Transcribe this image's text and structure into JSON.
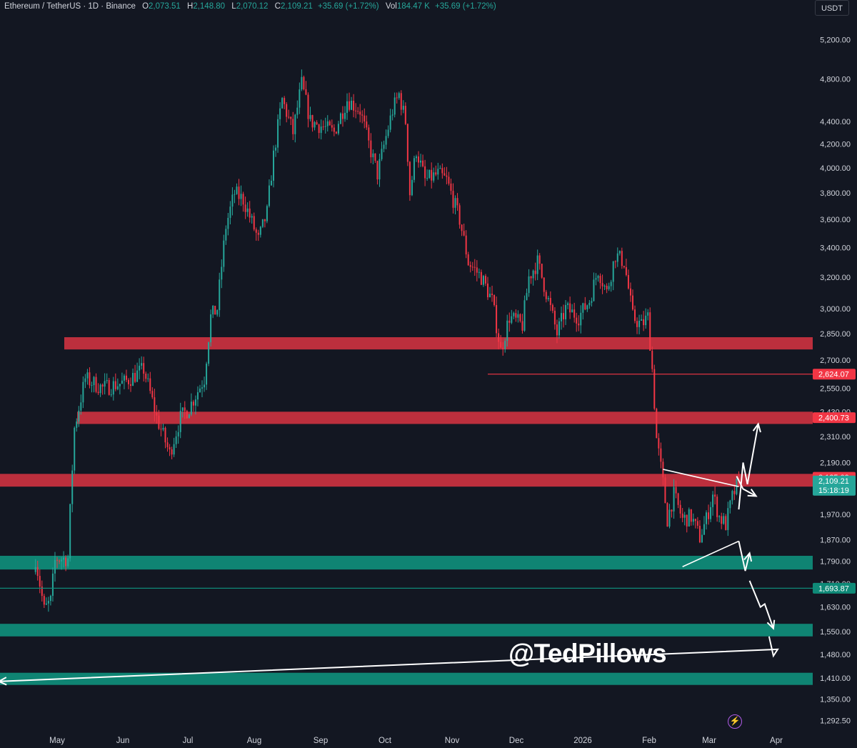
{
  "legend": {
    "symbol": "Ethereum / TetherUS · 1D · Binance",
    "open_label": "O",
    "open": "2,073.51",
    "high_label": "H",
    "high": "2,148.80",
    "low_label": "L",
    "low": "2,070.12",
    "close_label": "C",
    "close": "2,109.21",
    "change": "+35.69 (+1.72%)",
    "vol_label": "Vol",
    "vol": "184.47 K",
    "vol_change": "+35.69 (+1.72%)"
  },
  "currency": "USDT",
  "watermark": "@TedPillows",
  "alert_icon": "lightning-icon",
  "colors": {
    "background": "#131722",
    "up": "#26a69a",
    "down": "#f23645",
    "resistance_zone": "#c9323f",
    "support_zone": "#0f8a78",
    "annotation": "#ffffff"
  },
  "chart_data": {
    "type": "candlestick",
    "y_axis_scale": "log",
    "y_tick_labels": [
      "5,200.00",
      "4,800.00",
      "4,400.00",
      "4,200.00",
      "4,000.00",
      "3,800.00",
      "3,600.00",
      "3,400.00",
      "3,200.00",
      "3,000.00",
      "2,850.00",
      "2,700.00",
      "2,550.00",
      "2,430.00",
      "2,310.00",
      "2,190.00",
      "1,970.00",
      "1,870.00",
      "1,790.00",
      "1,710.00",
      "1,630.00",
      "1,550.00",
      "1,480.00",
      "1,410.00",
      "1,350.00",
      "1,292.50"
    ],
    "y_ticks": [
      5200,
      4800,
      4400,
      4200,
      4000,
      3800,
      3600,
      3400,
      3200,
      3000,
      2850,
      2700,
      2550,
      2430,
      2310,
      2190,
      1970,
      1870,
      1790,
      1710,
      1630,
      1550,
      1480,
      1410,
      1350,
      1292.5
    ],
    "x_tick_labels": [
      "May",
      "Jun",
      "Jul",
      "Aug",
      "Sep",
      "Oct",
      "Nov",
      "Dec",
      "2026",
      "Feb",
      "Mar",
      "Apr"
    ],
    "price_labels": [
      {
        "text": "2,624.07",
        "value": 2624.07,
        "color": "#f23645"
      },
      {
        "text": "2,400.73",
        "value": 2400.73,
        "color": "#f23645"
      },
      {
        "text": "2,125.09",
        "value": 2125.09,
        "color": "#f23645"
      },
      {
        "text": "2,109.21",
        "value": 2109.21,
        "color": "#26a69a",
        "countdown": "15:18:19"
      },
      {
        "text": "1,693.87",
        "value": 1693.87,
        "color": "#0f8a78"
      }
    ],
    "resistance_zones": [
      [
        2760,
        2830
      ],
      [
        2370,
        2430
      ],
      [
        2085,
        2140
      ]
    ],
    "support_zones": [
      [
        1760,
        1810
      ],
      [
        1535,
        1575
      ],
      [
        1390,
        1425
      ]
    ],
    "horizontal_lines": [
      2624.07,
      1693.87
    ],
    "path": [
      [
        "Apr 21",
        1800
      ],
      [
        "Apr 25",
        1620
      ],
      [
        "Apr 28",
        1650
      ],
      [
        "Apr 30",
        1790
      ],
      [
        "May 1",
        1800
      ],
      [
        "May 6",
        1800
      ],
      [
        "May 9",
        2350
      ],
      [
        "May 14",
        2600
      ],
      [
        "May 22",
        2550
      ],
      [
        "Jun 1",
        2580
      ],
      [
        "Jun 10",
        2650
      ],
      [
        "Jun 16",
        2400
      ],
      [
        "Jun 22",
        2230
      ],
      [
        "Jun 27",
        2400
      ],
      [
        "Jul 1",
        2450
      ],
      [
        "Jul 8",
        2600
      ],
      [
        "Jul 11",
        2950
      ],
      [
        "Jul 14",
        3000
      ],
      [
        "Jul 18",
        3550
      ],
      [
        "Jul 22",
        3800
      ],
      [
        "Jul 26",
        3750
      ],
      [
        "Aug 2",
        3450
      ],
      [
        "Aug 6",
        3650
      ],
      [
        "Aug 9",
        4100
      ],
      [
        "Aug 13",
        4600
      ],
      [
        "Aug 18",
        4300
      ],
      [
        "Aug 22",
        4750
      ],
      [
        "Aug 26",
        4400
      ],
      [
        "Sep 1",
        4350
      ],
      [
        "Sep 6",
        4300
      ],
      [
        "Sep 12",
        4600
      ],
      [
        "Sep 18",
        4500
      ],
      [
        "Sep 22",
        4200
      ],
      [
        "Sep 26",
        3950
      ],
      [
        "Oct 3",
        4500
      ],
      [
        "Oct 6",
        4650
      ],
      [
        "Oct 9",
        4400
      ],
      [
        "Oct 11",
        3800
      ],
      [
        "Oct 14",
        4150
      ],
      [
        "Oct 18",
        3900
      ],
      [
        "Oct 24",
        3950
      ],
      [
        "Oct 28",
        3900
      ],
      [
        "Nov 3",
        3600
      ],
      [
        "Nov 7",
        3300
      ],
      [
        "Nov 13",
        3200
      ],
      [
        "Nov 18",
        3050
      ],
      [
        "Nov 22",
        2750
      ],
      [
        "Nov 26",
        2950
      ],
      [
        "Dec 2",
        2900
      ],
      [
        "Dec 5",
        3200
      ],
      [
        "Dec 9",
        3300
      ],
      [
        "Dec 14",
        3050
      ],
      [
        "Dec 18",
        2850
      ],
      [
        "Dec 22",
        3000
      ],
      [
        "Dec 28",
        2950
      ],
      [
        "Jan 2",
        3050
      ],
      [
        "Jan 6",
        3250
      ],
      [
        "Jan 10",
        3100
      ],
      [
        "Jan 14",
        3350
      ],
      [
        "Jan 18",
        3300
      ],
      [
        "Jan 22",
        2950
      ],
      [
        "Jan 26",
        2900
      ],
      [
        "Jan 29",
        2950
      ],
      [
        "Jan 31",
        2650
      ],
      [
        "Feb 2",
        2300
      ],
      [
        "Feb 5",
        2100
      ],
      [
        "Feb 7",
        1950
      ],
      [
        "Feb 10",
        2050
      ],
      [
        "Feb 14",
        1950
      ],
      [
        "Feb 18",
        1960
      ],
      [
        "Feb 22",
        1880
      ],
      [
        "Feb 25",
        1950
      ],
      [
        "Feb 28",
        2050
      ],
      [
        "Mar 3",
        1960
      ],
      [
        "Mar 6",
        1930
      ],
      [
        "Mar 9",
        2040
      ],
      [
        "Mar 12",
        2109.21
      ]
    ],
    "annotations": [
      {
        "type": "descending-trendline",
        "from": [
          "Feb 5",
          2160
        ],
        "to": [
          "Mar 12",
          2085
        ]
      },
      {
        "type": "ascending-trendline",
        "from": [
          "Feb 14",
          1770
        ],
        "to": [
          "Mar 12",
          1865
        ]
      },
      {
        "type": "projection-arrow",
        "path": [
          [
            "Mar 12",
            1990
          ],
          [
            "Mar 14",
            2190
          ],
          [
            "Mar 16",
            2095
          ],
          [
            "Mar 21",
            2370
          ]
        ]
      },
      {
        "type": "projection-arrow",
        "path": [
          [
            "Mar 11",
            2130
          ],
          [
            "Mar 14",
            2075
          ],
          [
            "Mar 20",
            2045
          ]
        ]
      },
      {
        "type": "projection-arrow",
        "path": [
          [
            "Mar 12",
            1865
          ],
          [
            "Mar 15",
            1755
          ],
          [
            "Mar 17",
            1820
          ]
        ]
      },
      {
        "type": "projection-arrow",
        "path": [
          [
            "Mar 17",
            1720
          ],
          [
            "Mar 22",
            1630
          ],
          [
            "Mar 24",
            1640
          ],
          [
            "Mar 28",
            1560
          ]
        ]
      },
      {
        "type": "projection-arrow",
        "path": [
          [
            "Mar 26",
            1535
          ],
          [
            "Mar 28",
            1475
          ],
          [
            "Mar 30",
            1495
          ],
          [
            "Apr 4",
            1400
          ]
        ]
      }
    ]
  }
}
